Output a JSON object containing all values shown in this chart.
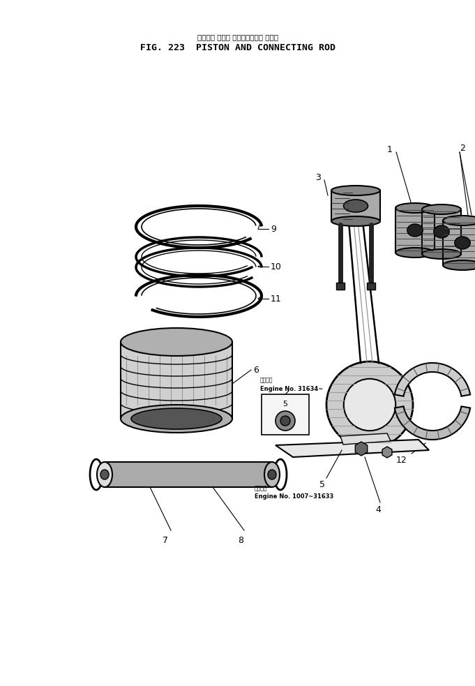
{
  "title_japanese": "ピストン および コネクティング ロッド",
  "title_english": "FIG. 223  PISTON AND CONNECTING ROD",
  "bg_color": "#ffffff",
  "note1_japanese": "適用年式",
  "note1_engine": "Engine No. 31634~",
  "note2_japanese": "適用年式",
  "note2_engine": "Engine No. 1007~31633"
}
